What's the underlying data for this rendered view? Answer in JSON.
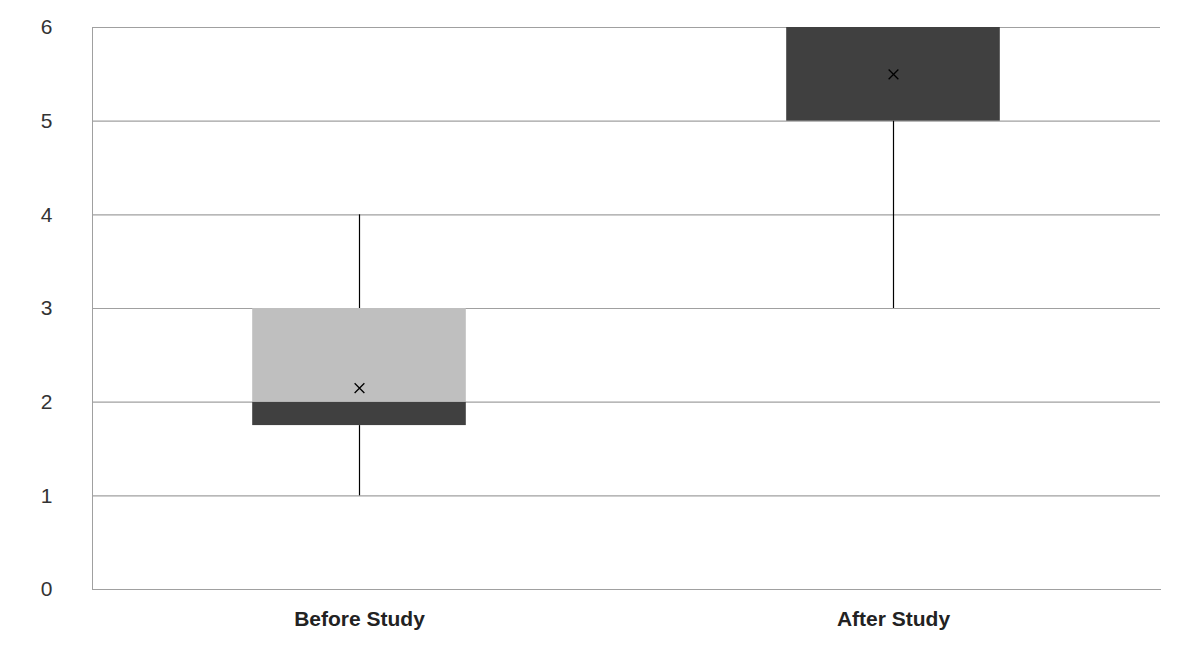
{
  "chart_data": {
    "type": "box",
    "categories": [
      "Before Study",
      "After Study"
    ],
    "boxes": [
      {
        "min": 1,
        "q1": 1.75,
        "median": 2,
        "q3": 3,
        "max": 4,
        "mean": 2.15
      },
      {
        "min": 3,
        "q1": 5,
        "median": 6,
        "q3": 6,
        "max": 6,
        "mean": 5.5
      }
    ],
    "colors": [
      "#404040",
      "#bfbfbf"
    ],
    "ylim": [
      0,
      6
    ],
    "yticks": [
      0,
      1,
      2,
      3,
      4,
      5,
      6
    ],
    "grid": true
  }
}
